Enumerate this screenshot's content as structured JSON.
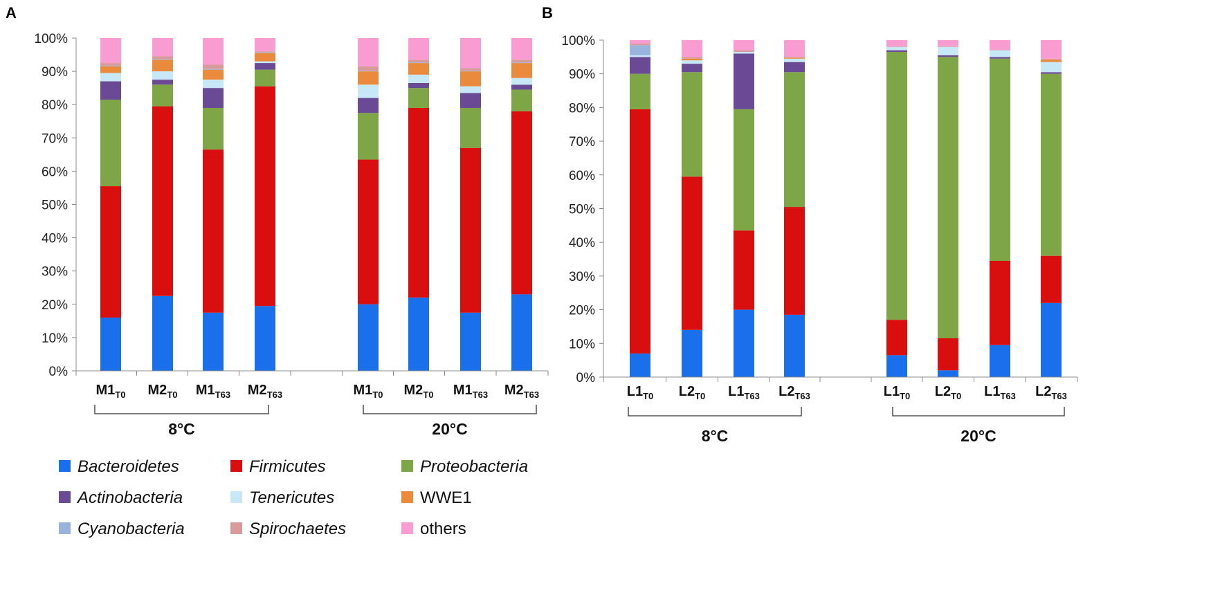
{
  "legend": [
    {
      "name": "Bacteroidetes",
      "color": "#1A6FEA",
      "italic": true
    },
    {
      "name": "Firmicutes",
      "color": "#D90F0F",
      "italic": true
    },
    {
      "name": "Proteobacteria",
      "color": "#7FA646",
      "italic": true
    },
    {
      "name": "Actinobacteria",
      "color": "#6A4A94",
      "italic": true
    },
    {
      "name": "Tenericutes",
      "color": "#C7E9F7",
      "italic": true
    },
    {
      "name": "WWE1",
      "color": "#EA8A3C",
      "italic": false
    },
    {
      "name": "Cyanobacteria",
      "color": "#98B3DC",
      "italic": true
    },
    {
      "name": "Spirochaetes",
      "color": "#D89A9A",
      "italic": true
    },
    {
      "name": "others",
      "color": "#F99CD2",
      "italic": false
    }
  ],
  "chart_data": [
    {
      "type": "bar",
      "stacked": true,
      "panel_label": "A",
      "ylim": [
        0,
        100
      ],
      "yticks": [
        "0%",
        "10%",
        "20%",
        "30%",
        "40%",
        "50%",
        "60%",
        "70%",
        "80%",
        "90%",
        "100%"
      ],
      "categories": [
        {
          "main": "M1",
          "sub": "T0"
        },
        {
          "main": "M2",
          "sub": "T0"
        },
        {
          "main": "M1",
          "sub": "T63"
        },
        {
          "main": "M2",
          "sub": "T63"
        },
        {
          "main": "M1",
          "sub": "T0"
        },
        {
          "main": "M2",
          "sub": "T0"
        },
        {
          "main": "M1",
          "sub": "T63"
        },
        {
          "main": "M2",
          "sub": "T63"
        }
      ],
      "groups": [
        {
          "label": "8°C",
          "members": [
            0,
            1,
            2,
            3
          ]
        },
        {
          "label": "20°C",
          "members": [
            4,
            5,
            6,
            7
          ]
        }
      ],
      "series": [
        {
          "name": "Bacteroidetes",
          "values": [
            16,
            22.5,
            17.5,
            19.5,
            20,
            22,
            17.5,
            23
          ]
        },
        {
          "name": "Firmicutes",
          "values": [
            39.5,
            57,
            49,
            66,
            43.5,
            57,
            49.5,
            55
          ]
        },
        {
          "name": "Proteobacteria",
          "values": [
            26,
            6.5,
            12.5,
            5,
            14,
            6,
            12,
            6.5
          ]
        },
        {
          "name": "Actinobacteria",
          "values": [
            5.5,
            1.5,
            6,
            2,
            4.5,
            1.5,
            4.5,
            1.5
          ]
        },
        {
          "name": "Tenericutes",
          "values": [
            2.5,
            2.5,
            2.5,
            0.5,
            4,
            2.5,
            2,
            2
          ]
        },
        {
          "name": "WWE1",
          "values": [
            2,
            3.5,
            3,
            2.5,
            4,
            3.5,
            4.5,
            4.5
          ]
        },
        {
          "name": "Cyanobacteria",
          "values": [
            0.2,
            0.2,
            0.2,
            0.2,
            0.2,
            0.2,
            0.2,
            0.2
          ]
        },
        {
          "name": "Spirochaetes",
          "values": [
            0.8,
            0.8,
            1.3,
            0.3,
            1.3,
            0.8,
            0.8,
            0.8
          ]
        },
        {
          "name": "others",
          "values": [
            7.5,
            5.5,
            8,
            4,
            8.5,
            6.5,
            9,
            6.5
          ]
        }
      ]
    },
    {
      "type": "bar",
      "stacked": true,
      "panel_label": "B",
      "ylim": [
        0,
        100
      ],
      "yticks": [
        "0%",
        "10%",
        "20%",
        "30%",
        "40%",
        "50%",
        "60%",
        "70%",
        "80%",
        "90%",
        "100%"
      ],
      "categories": [
        {
          "main": "L1",
          "sub": "T0"
        },
        {
          "main": "L2",
          "sub": "T0"
        },
        {
          "main": "L1",
          "sub": "T63"
        },
        {
          "main": "L2",
          "sub": "T63"
        },
        {
          "main": "L1",
          "sub": "T0"
        },
        {
          "main": "L2",
          "sub": "T0"
        },
        {
          "main": "L1",
          "sub": "T63"
        },
        {
          "main": "L2",
          "sub": "T63"
        }
      ],
      "groups": [
        {
          "label": "8°C",
          "members": [
            0,
            1,
            2,
            3
          ]
        },
        {
          "label": "20°C",
          "members": [
            4,
            5,
            6,
            7
          ]
        }
      ],
      "series": [
        {
          "name": "Bacteroidetes",
          "values": [
            7,
            14,
            20,
            18.5,
            6.5,
            2,
            9.5,
            22
          ]
        },
        {
          "name": "Firmicutes",
          "values": [
            72.5,
            45.5,
            23.5,
            32,
            10.5,
            9.5,
            25,
            14
          ]
        },
        {
          "name": "Proteobacteria",
          "values": [
            10.5,
            31,
            36,
            40,
            79.5,
            83.5,
            60,
            54
          ]
        },
        {
          "name": "Actinobacteria",
          "values": [
            5,
            2.5,
            16.5,
            3,
            0.5,
            0.5,
            0.5,
            0.5
          ]
        },
        {
          "name": "Tenericutes",
          "values": [
            0.5,
            1,
            0.5,
            1,
            1,
            2.5,
            2,
            3
          ]
        },
        {
          "name": "WWE1",
          "values": [
            0,
            0.5,
            0,
            0.3,
            0,
            0,
            0,
            0.7
          ]
        },
        {
          "name": "Cyanobacteria",
          "values": [
            3,
            0,
            0,
            0,
            0,
            0,
            0,
            0
          ]
        },
        {
          "name": "Spirochaetes",
          "values": [
            0.5,
            0.5,
            0.5,
            0.2,
            0.2,
            0.2,
            0.2,
            0.3
          ]
        },
        {
          "name": "others",
          "values": [
            1,
            5,
            3,
            5,
            1.8,
            1.8,
            2.8,
            5.5
          ]
        }
      ]
    }
  ]
}
